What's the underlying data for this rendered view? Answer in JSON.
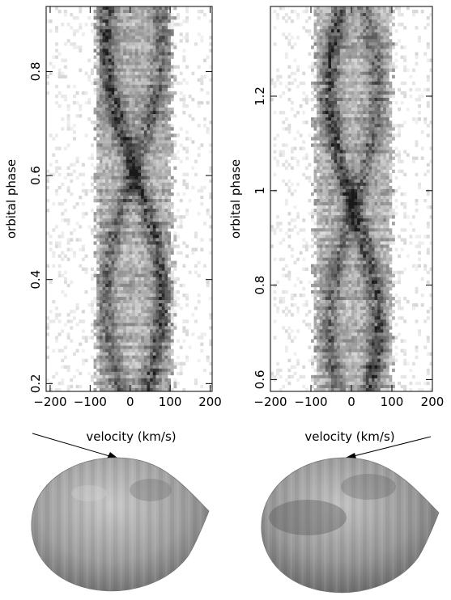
{
  "chart_data": [
    {
      "type": "heatmap",
      "title": "",
      "xlabel": "velocity (km/s)",
      "ylabel": "orbital phase",
      "xlim": [
        -210,
        205
      ],
      "ylim": [
        0.185,
        0.925
      ],
      "x_ticks": [
        -200,
        -100,
        0,
        100,
        200
      ],
      "x_tick_labels": [
        "−200",
        "−100",
        "0",
        "100",
        "200"
      ],
      "y_ticks": [
        0.2,
        0.4,
        0.6,
        0.8
      ],
      "y_tick_labels": [
        "0.2",
        "0.4",
        "0.6",
        "0.8"
      ],
      "colormap": "grayscale, darker = stronger",
      "band_center_kms": 10,
      "band_half_width_kms": 95,
      "s_wave_amplitude_kms": 70,
      "bright_spot_phase": 0.5
    },
    {
      "type": "heatmap",
      "title": "",
      "xlabel": "velocity (km/s)",
      "ylabel": "orbital phase",
      "xlim": [
        -200,
        200
      ],
      "ylim": [
        0.575,
        1.39
      ],
      "x_ticks": [
        -200,
        -100,
        0,
        100,
        200
      ],
      "x_tick_labels": [
        "−200",
        "−100",
        "0",
        "100",
        "200"
      ],
      "y_ticks": [
        0.6,
        0.8,
        1.0,
        1.2
      ],
      "y_tick_labels": [
        "0.6",
        "0.8",
        "1",
        "1.2"
      ],
      "colormap": "grayscale, darker = stronger",
      "band_center_kms": 5,
      "band_half_width_kms": 95,
      "s_wave_amplitude_kms": 60,
      "bright_spot_phase": 1.0
    }
  ],
  "stars": [
    {
      "name": "left-star-map",
      "shade": "#b0b0b0"
    },
    {
      "name": "right-star-map",
      "shade": "#a8a8a8"
    }
  ]
}
